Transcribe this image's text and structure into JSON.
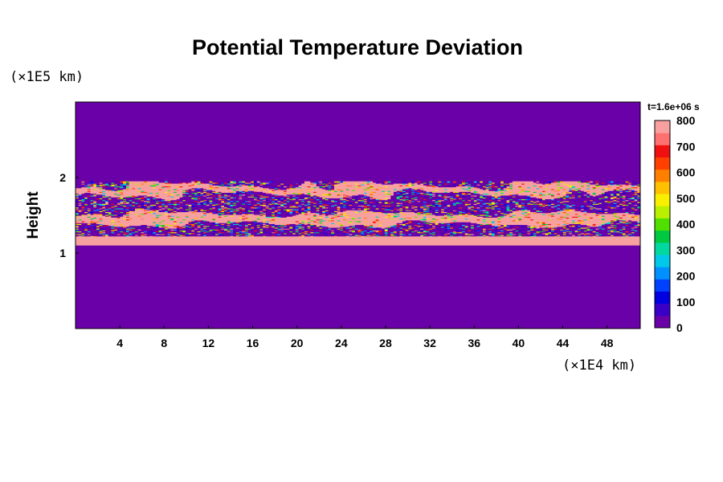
{
  "chart_data": {
    "type": "heatmap",
    "title": "Potential Temperature Deviation",
    "xlabel": "",
    "ylabel": "Height",
    "x_unit": "(×1E4 km)",
    "y_unit": "(×1E5 km)",
    "xlim": [
      0,
      51
    ],
    "ylim": [
      0,
      3
    ],
    "x_ticks": [
      4,
      8,
      12,
      16,
      20,
      24,
      28,
      32,
      36,
      40,
      44,
      48
    ],
    "y_ticks": [
      1,
      2
    ],
    "time_label": "t=1.6e+06 s",
    "colorbar": {
      "min": 0,
      "max": 800,
      "tick_labels": [
        0,
        100,
        200,
        300,
        400,
        500,
        600,
        700,
        800
      ],
      "colors": [
        "#6a00a8",
        "#3a00c8",
        "#0000e0",
        "#0040ff",
        "#0090ff",
        "#00c8e8",
        "#00d8a0",
        "#00c840",
        "#50e000",
        "#b8f000",
        "#f8f000",
        "#ffc000",
        "#ff8000",
        "#ff4000",
        "#f01010",
        "#ff7070",
        "#f8a0a0"
      ]
    },
    "regions": [
      {
        "name": "background",
        "y_range": [
          0,
          3
        ],
        "value": 0
      },
      {
        "name": "warm layer bottom",
        "y_range": [
          1.1,
          1.22
        ],
        "value": 800
      },
      {
        "name": "turbulent layer",
        "y_range": [
          1.22,
          1.95
        ],
        "value_range": [
          0,
          800
        ]
      },
      {
        "name": "warm band upper",
        "y_range": [
          1.78,
          1.9
        ],
        "value": 800
      },
      {
        "name": "warm band middle",
        "y_range": [
          1.38,
          1.52
        ],
        "value": 800
      }
    ]
  }
}
